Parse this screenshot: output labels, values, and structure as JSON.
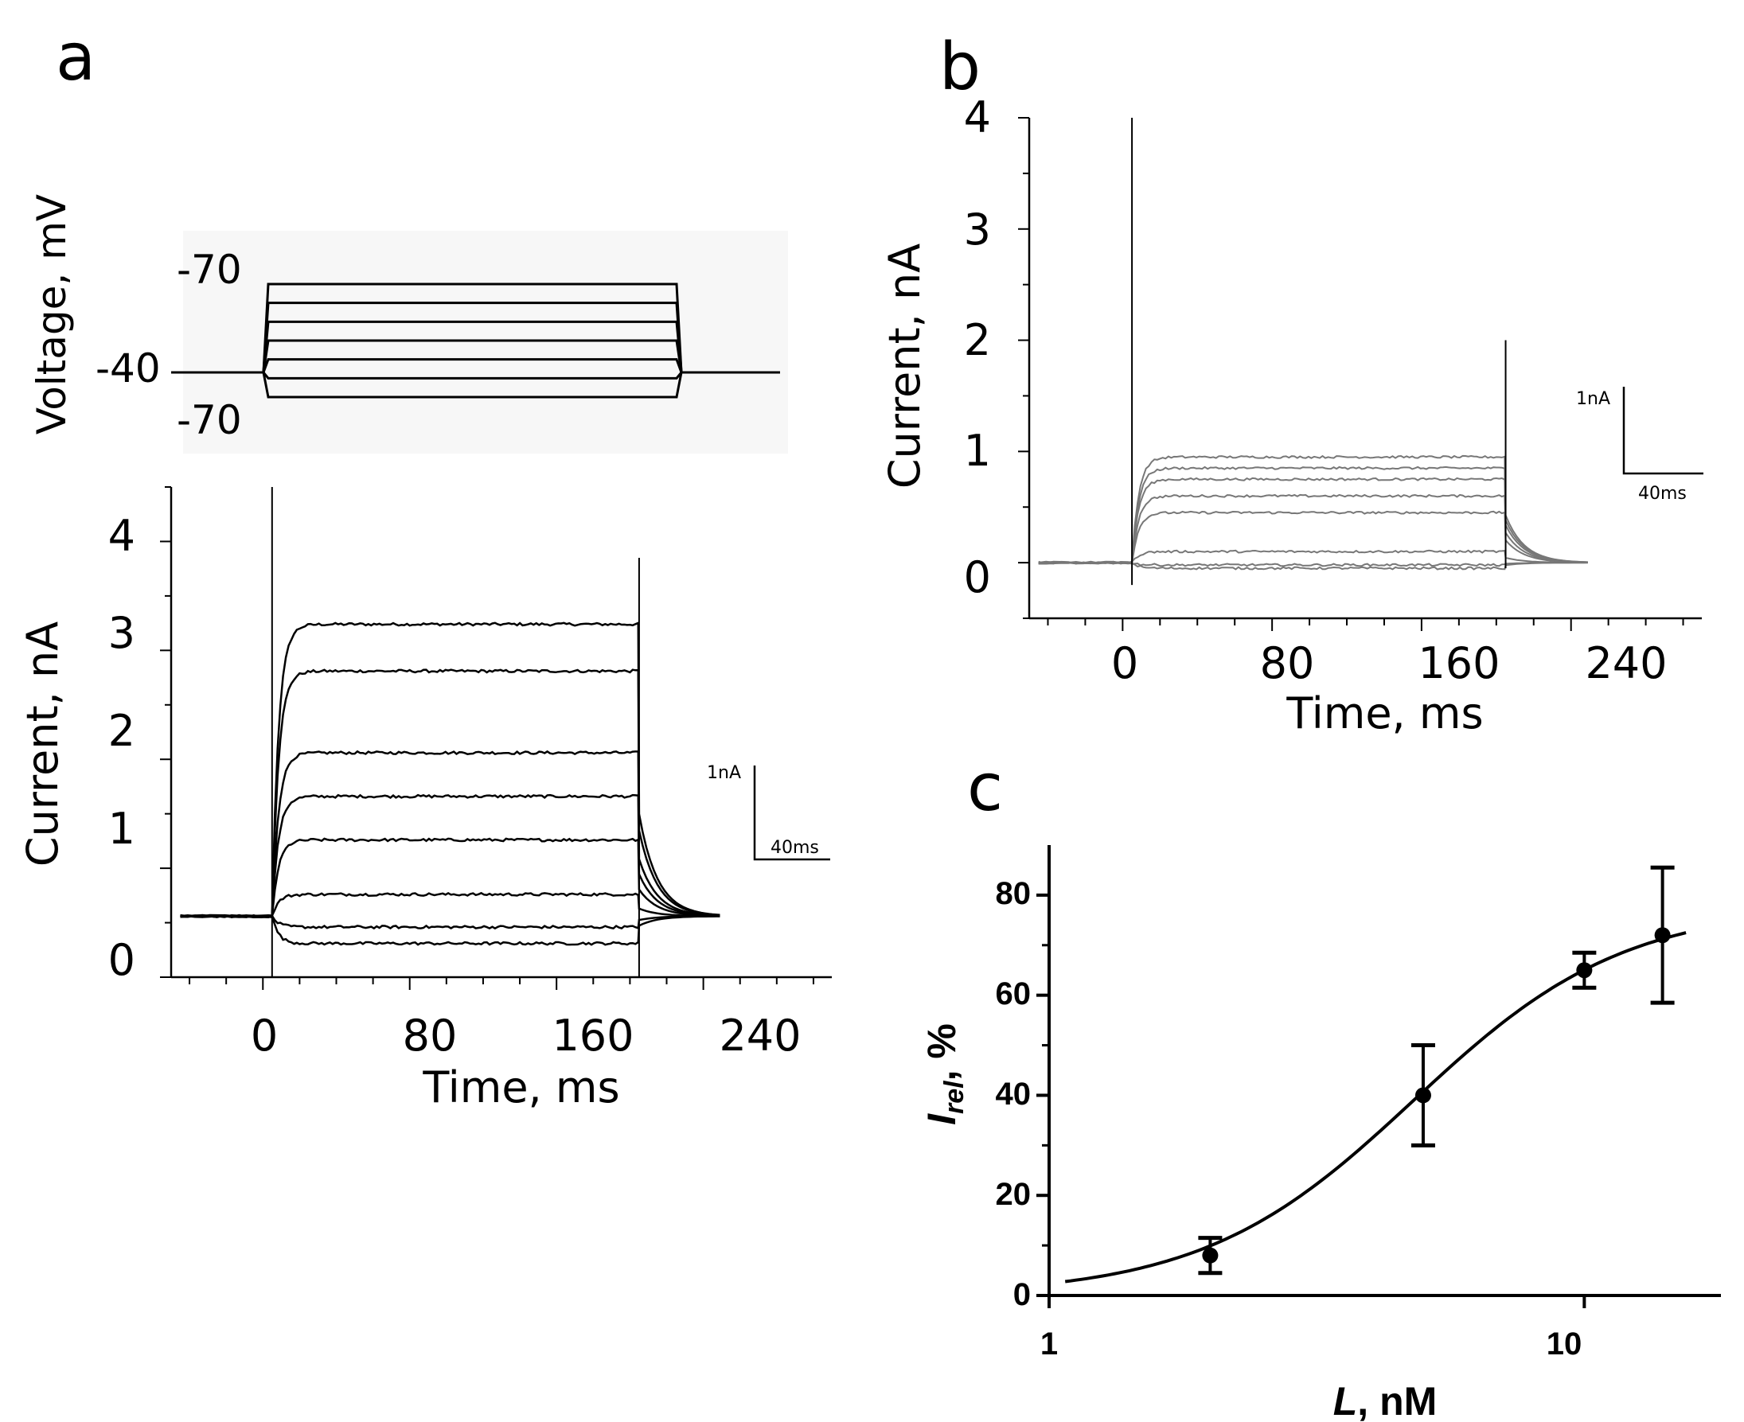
{
  "chart_data": [
    {
      "panel_label": "a",
      "type": "line",
      "subplot": "voltage-protocol",
      "ylabel": "Voltage, mV",
      "labels": {
        "top": "-70",
        "hold": "-40",
        "bottom": "-70"
      },
      "step_count": 7,
      "step_start_ms": 5,
      "step_end_ms": 205
    },
    {
      "panel_label": "a",
      "type": "line",
      "subplot": "current-traces",
      "title": "",
      "xlabel": "Time, ms",
      "ylabel": "Current, nA",
      "xlim": [
        -50,
        310
      ],
      "ylim": [
        0,
        4.5
      ],
      "xticks": [
        0,
        80,
        160,
        240
      ],
      "yticks": [
        0,
        1,
        2,
        3,
        4
      ],
      "xtick_labels": [
        "0",
        "80",
        "160",
        "240"
      ],
      "ytick_labels": [
        "0",
        "1",
        "2",
        "3",
        "4"
      ],
      "baseline": 0.56,
      "step_start_ms": 5,
      "step_end_ms": 205,
      "tail_end_ms": 250,
      "series_steady_state_nA": [
        2.68,
        2.25,
        1.5,
        1.1,
        0.7,
        0.2,
        -0.1,
        -0.25
      ],
      "scale_bar": {
        "current_label": "1nA",
        "time_label": "40ms"
      }
    },
    {
      "panel_label": "b",
      "type": "line",
      "xlabel": "Time, ms",
      "ylabel": "Current, nA",
      "xlim": [
        -50,
        310
      ],
      "ylim": [
        -0.5,
        4
      ],
      "xticks": [
        0,
        80,
        160,
        240
      ],
      "yticks": [
        0,
        1,
        2,
        3,
        4
      ],
      "xtick_labels": [
        "0",
        "80",
        "160",
        "240"
      ],
      "ytick_labels": [
        "0",
        "1",
        "2",
        "3",
        "4"
      ],
      "baseline": 0,
      "step_start_ms": 5,
      "step_end_ms": 205,
      "tail_end_ms": 250,
      "series_steady_state_nA": [
        0.95,
        0.85,
        0.75,
        0.6,
        0.45,
        0.1,
        -0.02,
        -0.05
      ],
      "scale_bar": {
        "current_label": "1nA",
        "time_label": "40ms"
      }
    },
    {
      "panel_label": "c",
      "type": "scatter",
      "xlabel_main": "L",
      "xlabel_rest": ", nM",
      "ylabel_main": "I",
      "ylabel_sub": "rel",
      "ylabel_rest": ", %",
      "x_scale": "log",
      "xlim": [
        1,
        18
      ],
      "ylim": [
        0,
        90
      ],
      "xticks": [
        1,
        10
      ],
      "yticks": [
        0,
        20,
        40,
        60,
        80
      ],
      "xtick_labels": [
        "1",
        "10"
      ],
      "ytick_labels": [
        "0",
        "20",
        "40",
        "60",
        "80"
      ],
      "points": [
        {
          "x": 2,
          "y": 8,
          "err": 3.5
        },
        {
          "x": 5,
          "y": 40,
          "err": 10
        },
        {
          "x": 10,
          "y": 65,
          "err": 3.5
        },
        {
          "x": 14,
          "y": 72,
          "err": 13.5
        }
      ],
      "fit": {
        "top": 78,
        "ec50": 4.8,
        "hill": 2.2
      }
    }
  ]
}
